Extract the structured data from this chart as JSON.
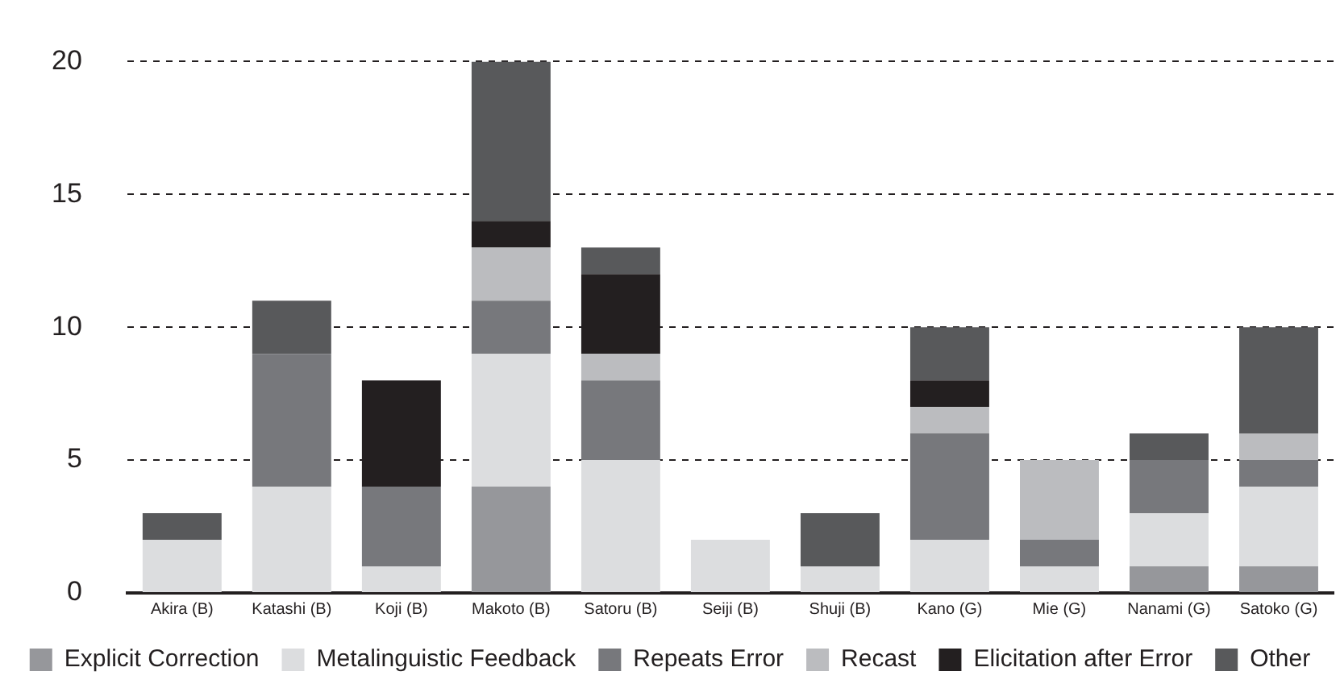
{
  "chart_data": {
    "type": "bar",
    "stacked": true,
    "categories": [
      "Akira (B)",
      "Katashi (B)",
      "Koji (B)",
      "Makoto (B)",
      "Satoru (B)",
      "Seiji (B)",
      "Shuji (B)",
      "Kano (G)",
      "Mie (G)",
      "Nanami (G)",
      "Satoko (G)"
    ],
    "series": [
      {
        "name": "Explicit Correction",
        "color": "#96979b",
        "values": [
          0,
          0,
          0,
          4,
          0,
          0,
          0,
          0,
          0,
          1,
          1
        ]
      },
      {
        "name": "Metalinguistic Feedback",
        "color": "#dcdddf",
        "values": [
          2,
          4,
          1,
          5,
          5,
          2,
          1,
          2,
          1,
          2,
          3
        ]
      },
      {
        "name": "Repeats Error",
        "color": "#77787c",
        "values": [
          0,
          5,
          3,
          2,
          3,
          0,
          0,
          4,
          1,
          2,
          1
        ]
      },
      {
        "name": "Recast",
        "color": "#bbbcbf",
        "values": [
          0,
          0,
          0,
          2,
          1,
          0,
          0,
          1,
          3,
          0,
          1
        ]
      },
      {
        "name": "Elicitation after Error",
        "color": "#231f20",
        "values": [
          0,
          0,
          4,
          1,
          3,
          0,
          0,
          1,
          0,
          0,
          0
        ]
      },
      {
        "name": "Other",
        "color": "#58595b",
        "values": [
          1,
          2,
          0,
          6,
          1,
          0,
          2,
          2,
          0,
          1,
          4
        ]
      }
    ],
    "ylim": [
      0,
      20
    ],
    "yticks": [
      0,
      5,
      10,
      15,
      20
    ],
    "grid": "y",
    "legend": "bottom"
  }
}
